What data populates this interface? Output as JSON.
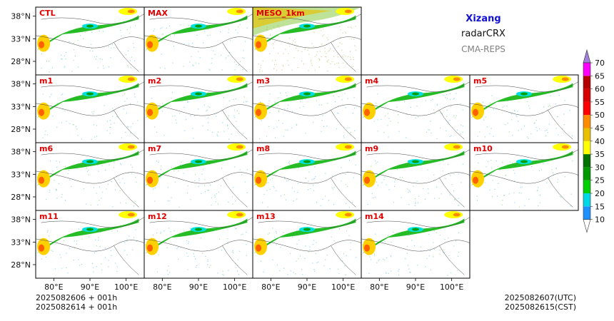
{
  "header": {
    "region": "Xizang",
    "product": "radarCRX",
    "model": "CMA-REPS"
  },
  "footer": {
    "init_utc": "2025082606  +  001h",
    "init_cst": "2025082614  +  001h",
    "valid_utc": "2025082607(UTC)",
    "valid_cst": "2025082615(CST)"
  },
  "chart_data": {
    "type": "heatmap",
    "panels": [
      "CTL",
      "MAX",
      "MESO_1km",
      "m1",
      "m2",
      "m3",
      "m4",
      "m5",
      "m6",
      "m7",
      "m8",
      "m9",
      "m10",
      "m11",
      "m12",
      "m13",
      "m14"
    ],
    "y_ticks": [
      "38°N",
      "33°N",
      "28°N"
    ],
    "x_ticks": [
      "80°E",
      "90°E",
      "100°E"
    ],
    "xlim": [
      75,
      105
    ],
    "ylim": [
      25,
      40
    ],
    "colorbar": {
      "levels": [
        10,
        15,
        20,
        25,
        30,
        35,
        40,
        45,
        50,
        55,
        60,
        65,
        70
      ],
      "colors": [
        "#1e90ff",
        "#00d8e8",
        "#00d000",
        "#009a00",
        "#007200",
        "#ffff00",
        "#e8c000",
        "#ff8c00",
        "#ff0000",
        "#d80000",
        "#b40000",
        "#ff00ff",
        "#9400d3",
        "#a080d8"
      ],
      "extend": "both"
    }
  }
}
